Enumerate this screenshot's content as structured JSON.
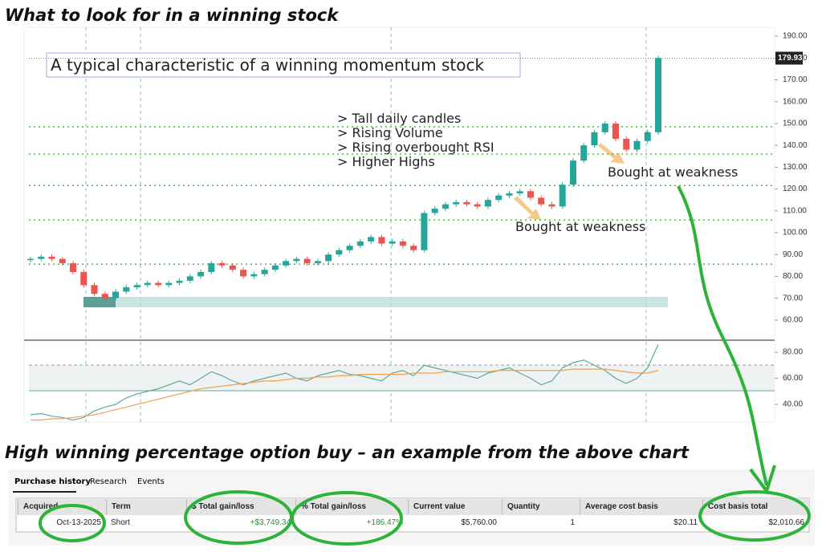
{
  "title": "What to look for in a winning stock",
  "chart_data": {
    "type": "candlestick",
    "values": [
      88,
      89,
      88,
      86,
      82,
      76,
      72,
      70,
      73,
      75,
      76,
      77,
      76,
      77,
      78,
      80,
      82,
      86,
      85,
      83,
      80,
      81,
      83,
      85,
      87,
      88,
      86,
      87,
      90,
      92,
      94,
      96,
      98,
      95,
      96,
      94,
      92,
      109,
      111,
      113,
      114,
      113,
      112,
      115,
      117,
      118,
      119,
      116,
      113,
      112,
      122,
      133,
      140,
      146,
      150,
      143,
      138,
      142,
      146,
      180
    ],
    "ylim": [
      51.5,
      193.7
    ],
    "yticks": [
      {
        "value": 190,
        "label": "190.00"
      },
      {
        "value": 180,
        "label": "180.00"
      },
      {
        "value": 170,
        "label": "170.00"
      },
      {
        "value": 160,
        "label": "160.00"
      },
      {
        "value": 150,
        "label": "150.00"
      },
      {
        "value": 140,
        "label": "140.00"
      },
      {
        "value": 130,
        "label": "130.00"
      },
      {
        "value": 120,
        "label": "120.00"
      },
      {
        "value": 110,
        "label": "110.00"
      },
      {
        "value": 100,
        "label": "100.00"
      },
      {
        "value": 90,
        "label": "90.00"
      },
      {
        "value": 80,
        "label": "80.00"
      },
      {
        "value": 70,
        "label": "70.00"
      },
      {
        "value": 60,
        "label": "60.00"
      }
    ],
    "last_price": 179.93,
    "levels": [
      148.5,
      136,
      121.6,
      105.8,
      85.6
    ],
    "up_color": "#26a69a",
    "down_color": "#ef5350",
    "rsi": {
      "series": [
        {
          "name": "RSI",
          "color": "#5fa89c",
          "values": [
            32,
            33,
            31,
            30,
            28,
            30,
            35,
            38,
            40,
            45,
            48,
            50,
            52,
            55,
            58,
            55,
            60,
            65,
            62,
            58,
            55,
            58,
            60,
            62,
            64,
            60,
            58,
            62,
            64,
            66,
            63,
            62,
            60,
            58,
            64,
            66,
            62,
            70,
            68,
            66,
            64,
            62,
            60,
            64,
            66,
            68,
            64,
            60,
            55,
            58,
            68,
            72,
            74,
            70,
            66,
            60,
            56,
            60,
            68,
            86
          ]
        },
        {
          "name": "RSI MA",
          "color": "#f0a050",
          "values": [
            28,
            28,
            29,
            29,
            30,
            31,
            32,
            34,
            36,
            38,
            40,
            42,
            44,
            46,
            48,
            50,
            52,
            53,
            54,
            55,
            56,
            57,
            58,
            58,
            59,
            60,
            60,
            61,
            61,
            62,
            62,
            63,
            63,
            63,
            63,
            63,
            64,
            64,
            64,
            65,
            65,
            65,
            65,
            65,
            66,
            66,
            66,
            66,
            66,
            66,
            66,
            67,
            67,
            67,
            67,
            66,
            65,
            64,
            64,
            66
          ]
        }
      ],
      "ylim": [
        27.1,
        88.6
      ],
      "yticks": [
        {
          "value": 80,
          "label": "80.00"
        },
        {
          "value": 60,
          "label": "60.00"
        },
        {
          "value": 40,
          "label": "40.00"
        }
      ]
    }
  },
  "annotations": {
    "box": "A typical characteristic of a winning momentum stock",
    "bullets": [
      "> Tall daily candles",
      "> Rising Volume",
      "> Rising overbought RSI",
      "> Higher Highs"
    ],
    "weakness_1": "Bought at weakness",
    "weakness_2": "Bought at weakness"
  },
  "section_title": "High winning percentage option buy – an example from the above chart",
  "tabs": [
    "Purchase history",
    "Research",
    "Events"
  ],
  "table": {
    "headers": [
      "Acquired",
      "Term",
      "$ Total gain/loss",
      "% Total gain/loss",
      "Current value",
      "Quantity",
      "Average cost basis",
      "Cost basis total"
    ],
    "rows": [
      [
        "Oct-13-2025",
        "Short",
        "+$3,749.34",
        "+186.47%",
        "$5,760.00",
        "1",
        "$20.11",
        "$2,010.66"
      ]
    ]
  }
}
